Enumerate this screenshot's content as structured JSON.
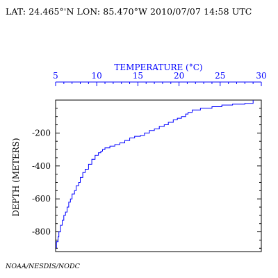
{
  "header": {
    "location_text": "LAT: 24.465°'N LON: 85.470°W 2010/07/07 14:58 UTC"
  },
  "footer": {
    "credit": "NOAA/NESDIS/NODC"
  },
  "chart_data": {
    "type": "line",
    "title": "",
    "xlabel": "TEMPERATURE (°C)",
    "ylabel": "DEPTH (METERS)",
    "xlim": [
      5,
      30
    ],
    "ylim": [
      0,
      920
    ],
    "x_axis_position": "top",
    "y_inverted": true,
    "grid": false,
    "x_ticks": [
      5,
      10,
      15,
      20,
      25,
      30
    ],
    "x_tick_labels": [
      "5",
      "10",
      "15",
      "20",
      "25",
      "30"
    ],
    "y_ticks": [
      200,
      400,
      600,
      800
    ],
    "y_tick_labels": [
      "-200",
      "-400",
      "-600",
      "-800"
    ],
    "colors": {
      "series": "#0000ff",
      "axis_top": "#0000ff",
      "frame": "#000000"
    },
    "series": [
      {
        "temperature": [
          29.0,
          29.0,
          28.0,
          26.5,
          25.2,
          24.0,
          22.6,
          21.6,
          21.1,
          20.8,
          20.3,
          19.8,
          19.3,
          18.7,
          18.2,
          17.6,
          17.0,
          16.4,
          15.8,
          15.3,
          14.6,
          14.0,
          13.4,
          12.8,
          12.2,
          11.6,
          11.0,
          10.7,
          10.5,
          10.2,
          9.8,
          9.4,
          9.0,
          8.6,
          8.3,
          8.0,
          7.8,
          7.5,
          7.3,
          7.0,
          6.8,
          6.6,
          6.4,
          6.2,
          6.0,
          5.8,
          5.6,
          5.4,
          5.3,
          5.1
        ],
        "depth": [
          0,
          20,
          25,
          30,
          40,
          50,
          60,
          75,
          85,
          100,
          110,
          120,
          135,
          150,
          160,
          175,
          185,
          200,
          215,
          220,
          230,
          245,
          260,
          270,
          280,
          290,
          300,
          310,
          320,
          335,
          360,
          390,
          420,
          440,
          470,
          500,
          520,
          550,
          570,
          600,
          620,
          650,
          680,
          700,
          730,
          760,
          800,
          830,
          860,
          900
        ]
      }
    ]
  }
}
